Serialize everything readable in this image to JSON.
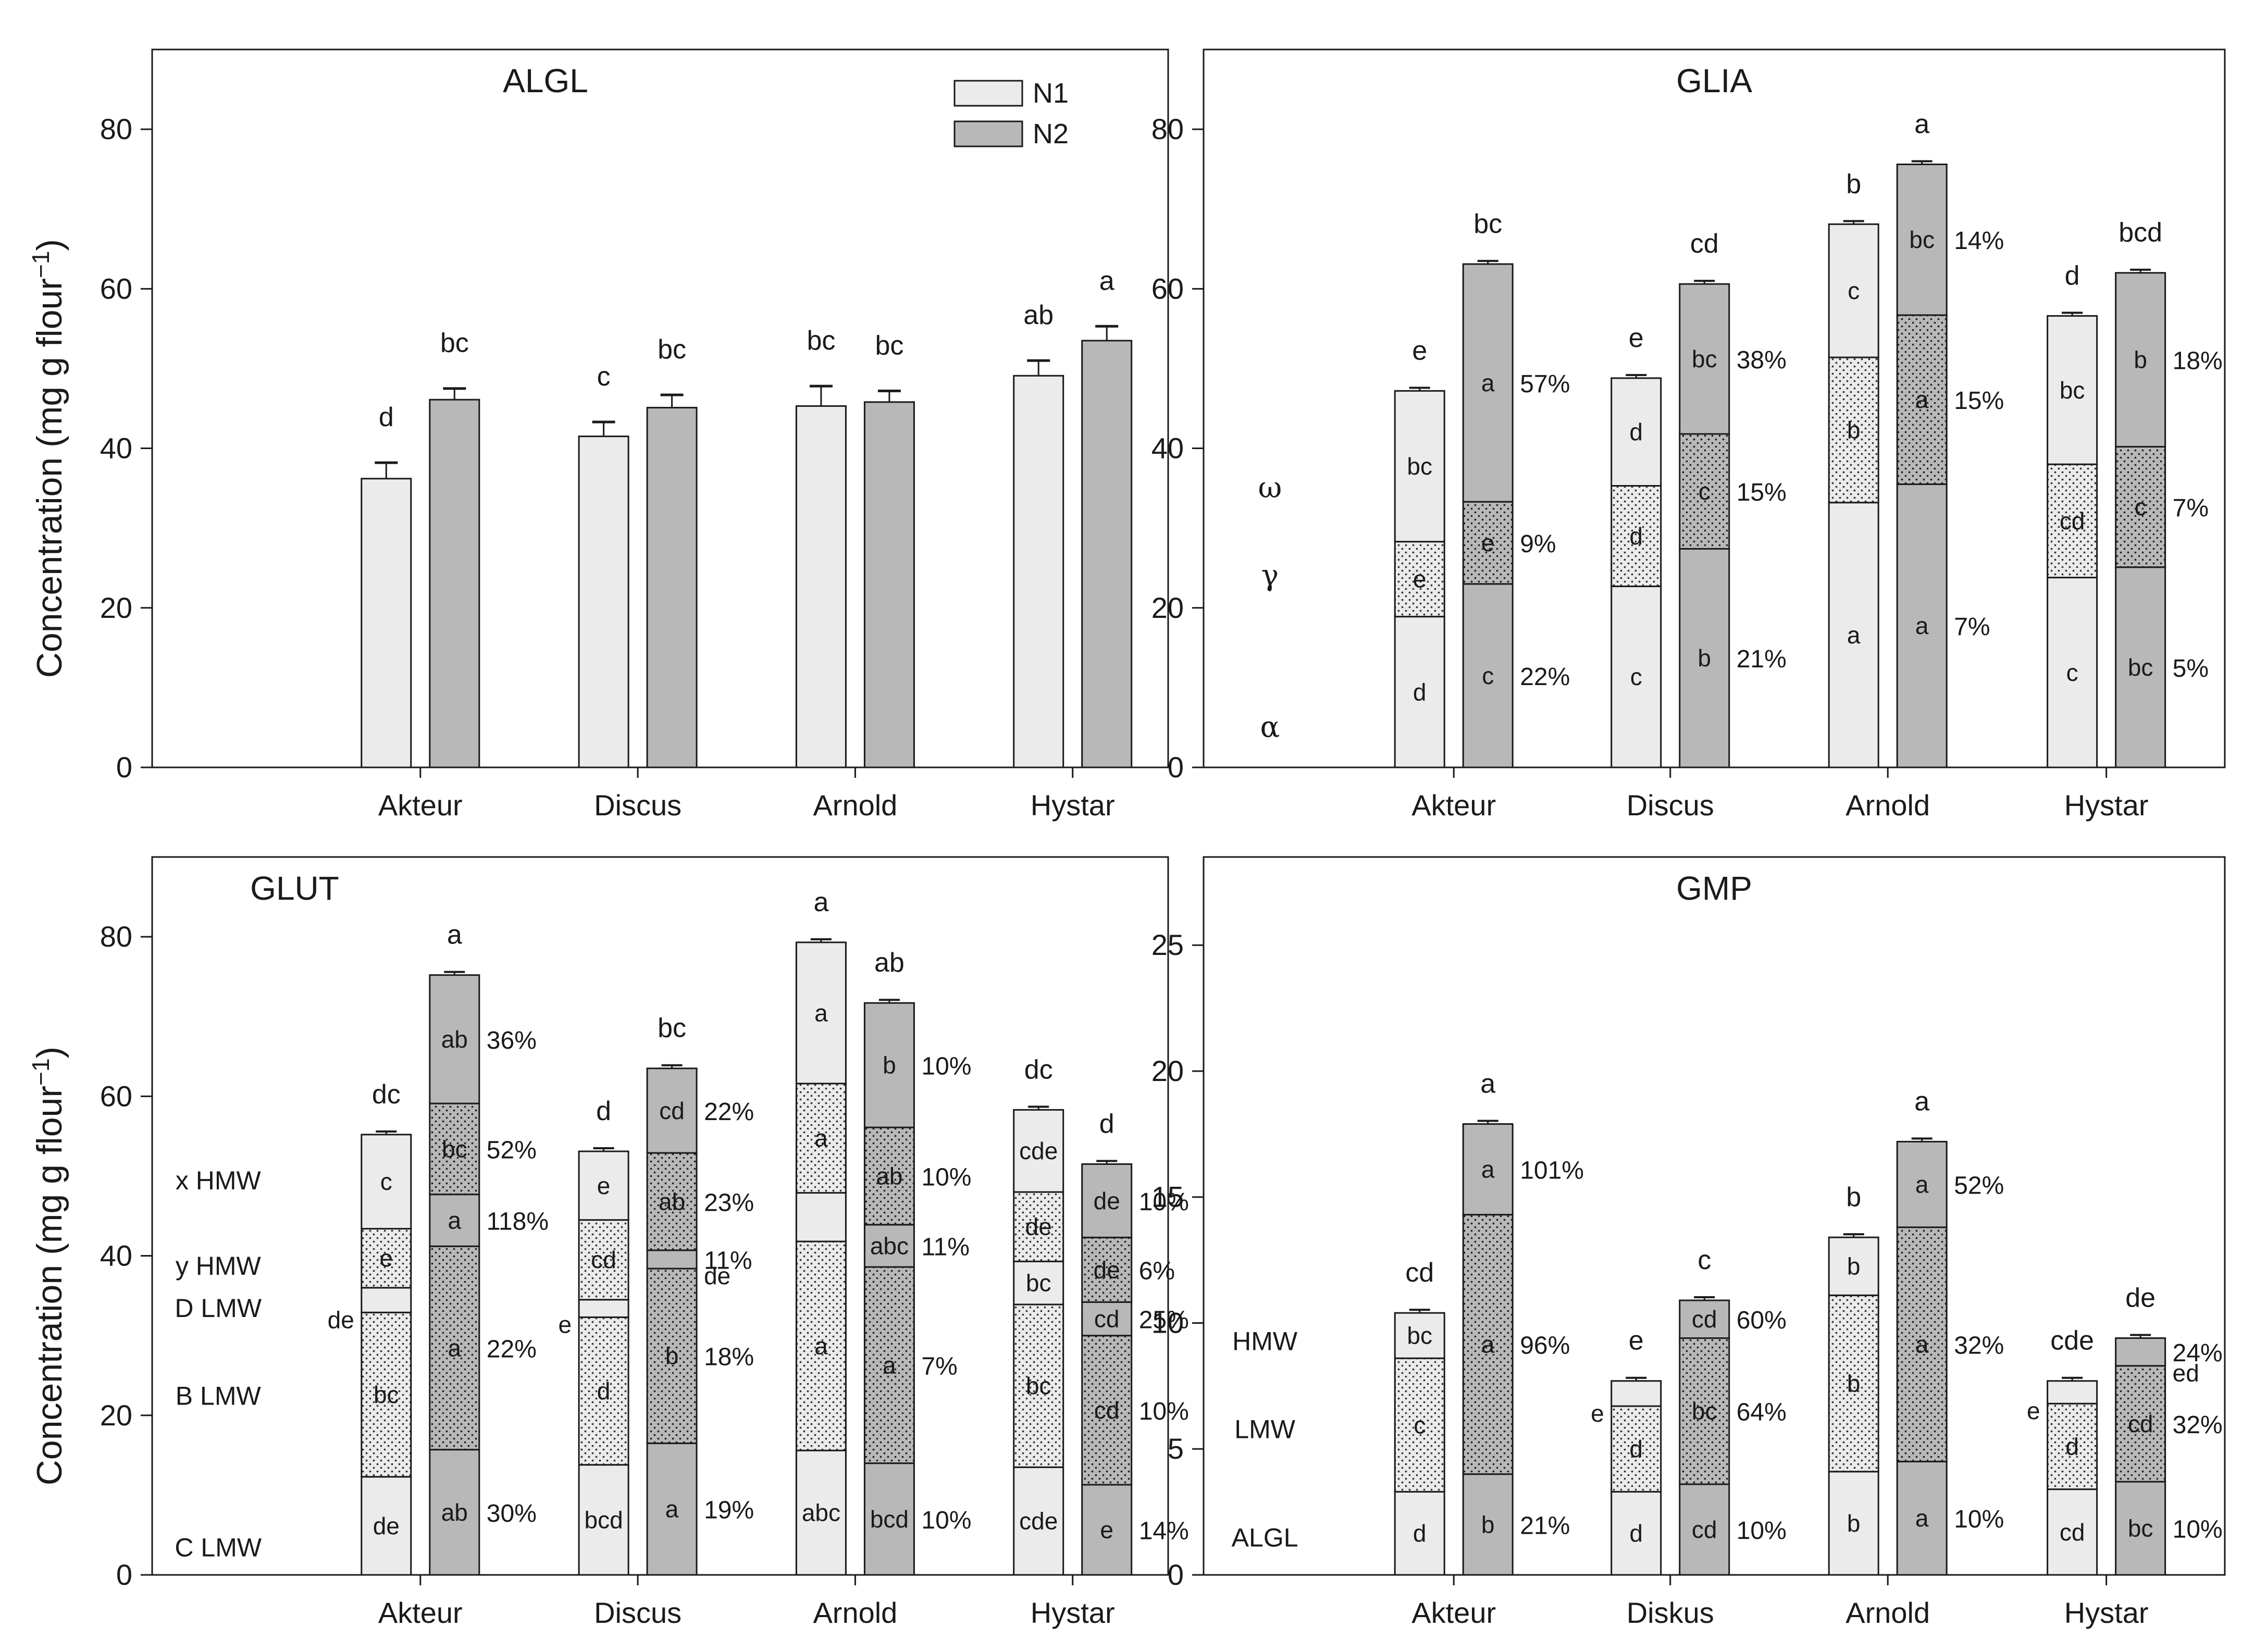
{
  "colors": {
    "n1": "#ebebeb",
    "n2": "#b8b8b8",
    "stroke": "#1a1a1a"
  },
  "y_axis_title": "Concentration (mg g flour",
  "y_axis_title_sup": "−1",
  "y_axis_title_close": ")",
  "chart_data": [
    {
      "id": "algl",
      "type": "bar",
      "title": "ALGL",
      "categories": [
        "Akteur",
        "Discus",
        "Arnold",
        "Hystar"
      ],
      "ylim": [
        0,
        90
      ],
      "yticks": [
        0,
        20,
        40,
        60,
        80
      ],
      "legend": {
        "placement": "top-right",
        "entries": [
          {
            "key": "n1",
            "label": "N1"
          },
          {
            "key": "n2",
            "label": "N2"
          }
        ]
      },
      "series": [
        {
          "name": "N1",
          "key": "n1",
          "values": [
            36.2,
            41.5,
            45.3,
            49.1
          ],
          "errors": [
            2.0,
            1.8,
            2.5,
            1.9
          ],
          "sig": [
            "d",
            "c",
            "bc",
            "ab"
          ]
        },
        {
          "name": "N2",
          "key": "n2",
          "values": [
            46.1,
            45.1,
            45.8,
            53.5
          ],
          "errors": [
            1.4,
            1.6,
            1.4,
            1.8
          ],
          "sig": [
            "bc",
            "bc",
            "bc",
            "a"
          ]
        }
      ]
    },
    {
      "id": "glia",
      "type": "bar",
      "stacked": true,
      "title": "GLIA",
      "categories": [
        "Akteur",
        "Discus",
        "Arnold",
        "Hystar"
      ],
      "ylim": [
        0,
        90
      ],
      "yticks": [
        0,
        20,
        40,
        60,
        80
      ],
      "component_labels_style": "greek",
      "component_labels": [
        "α",
        "γ",
        "ω"
      ],
      "component_label_values": [
        5,
        24,
        35
      ],
      "series": [
        {
          "name": "N1",
          "key": "n1",
          "pattern": [
            null,
            "dots",
            null
          ],
          "totals": [
            47.2,
            48.8,
            68.1,
            56.6
          ],
          "total_sig": [
            "e",
            "e",
            "b",
            "d"
          ],
          "bars": [
            {
              "bounds": [
                0,
                18.9,
                28.3,
                47.2
              ],
              "letters": [
                "d",
                "e",
                "bc"
              ],
              "pcts": [
                "",
                "",
                ""
              ]
            },
            {
              "bounds": [
                0,
                22.7,
                35.3,
                48.8
              ],
              "letters": [
                "c",
                "d",
                "d"
              ],
              "pcts": [
                "",
                "",
                ""
              ]
            },
            {
              "bounds": [
                0,
                33.2,
                51.4,
                68.1
              ],
              "letters": [
                "a",
                "b",
                "c"
              ],
              "pcts": [
                "",
                "",
                ""
              ]
            },
            {
              "bounds": [
                0,
                23.8,
                38.0,
                56.6
              ],
              "letters": [
                "c",
                "cd",
                "bc"
              ],
              "pcts": [
                "",
                "",
                ""
              ]
            }
          ]
        },
        {
          "name": "N2",
          "key": "n2",
          "pattern": [
            null,
            "dots",
            null
          ],
          "totals": [
            63.1,
            60.6,
            75.6,
            62.0
          ],
          "total_sig": [
            "bc",
            "cd",
            "a",
            "bcd"
          ],
          "bars": [
            {
              "bounds": [
                0,
                23.0,
                33.3,
                63.1
              ],
              "letters": [
                "c",
                "e",
                "a"
              ],
              "pcts": [
                "22%",
                "9%",
                "57%"
              ]
            },
            {
              "bounds": [
                0,
                27.4,
                41.8,
                60.6
              ],
              "letters": [
                "b",
                "c",
                "bc"
              ],
              "pcts": [
                "21%",
                "15%",
                "38%"
              ]
            },
            {
              "bounds": [
                0,
                35.5,
                56.7,
                75.6
              ],
              "letters": [
                "a",
                "a",
                "bc"
              ],
              "pcts": [
                "7%",
                "15%",
                "14%"
              ]
            },
            {
              "bounds": [
                0,
                25.1,
                40.2,
                62.0
              ],
              "letters": [
                "bc",
                "c",
                "b"
              ],
              "pcts": [
                "5%",
                "7%",
                "18%"
              ]
            }
          ]
        }
      ]
    },
    {
      "id": "glut",
      "type": "bar",
      "stacked": true,
      "title": "GLUT",
      "categories": [
        "Akteur",
        "Discus",
        "Arnold",
        "Hystar"
      ],
      "ylim": [
        0,
        90
      ],
      "yticks": [
        0,
        20,
        40,
        60,
        80
      ],
      "component_labels_style": "text",
      "component_labels": [
        "C LMW",
        "B LMW",
        "D LMW",
        "y HMW",
        "x HMW"
      ],
      "component_label_values": [
        3.5,
        22.5,
        33.5,
        38.8,
        49.5
      ],
      "series": [
        {
          "name": "N1",
          "key": "n1",
          "pattern": [
            null,
            "dots",
            null,
            "dots",
            null
          ],
          "totals": [
            55.2,
            53.1,
            79.3,
            58.3
          ],
          "total_sig": [
            "dc",
            "d",
            "a",
            "dc"
          ],
          "bars": [
            {
              "bounds": [
                0,
                12.3,
                32.9,
                36.0,
                43.4,
                55.2
              ],
              "letters": [
                "de",
                "bc",
                "",
                "e",
                "c"
              ],
              "pcts": [
                "",
                "",
                "",
                "",
                ""
              ],
              "side_letter": "de"
            },
            {
              "bounds": [
                0,
                13.8,
                32.3,
                34.5,
                44.5,
                53.1
              ],
              "letters": [
                "bcd",
                "d",
                "",
                "cd",
                "e"
              ],
              "pcts": [
                "",
                "",
                "",
                "",
                ""
              ],
              "side_letter": "e"
            },
            {
              "bounds": [
                0,
                15.6,
                41.8,
                47.9,
                61.6,
                79.3
              ],
              "letters": [
                "abc",
                "a",
                "",
                "a",
                "a"
              ],
              "pcts": [
                "",
                "",
                "",
                "",
                ""
              ],
              "side_letter": ""
            },
            {
              "bounds": [
                0,
                13.5,
                33.9,
                39.3,
                48.0,
                58.3
              ],
              "letters": [
                "cde",
                "bc",
                "bc",
                "de",
                "cde"
              ],
              "pcts": [
                "",
                "",
                "",
                "",
                ""
              ],
              "side_letter": ""
            }
          ]
        },
        {
          "name": "N2",
          "key": "n2",
          "pattern": [
            null,
            "dots",
            null,
            "dots",
            null
          ],
          "totals": [
            75.2,
            63.5,
            71.7,
            51.5
          ],
          "total_sig": [
            "a",
            "bc",
            "ab",
            "d"
          ],
          "bars": [
            {
              "bounds": [
                0,
                15.7,
                41.2,
                47.7,
                59.1,
                75.2
              ],
              "letters": [
                "ab",
                "a",
                "a",
                "bc",
                "ab"
              ],
              "pcts": [
                "30%",
                "22%",
                "118%",
                "52%",
                "36%"
              ],
              "side_letter": ""
            },
            {
              "bounds": [
                0,
                16.5,
                38.4,
                40.7,
                52.9,
                63.5
              ],
              "letters": [
                "a",
                "b",
                "",
                "ab",
                "cd"
              ],
              "pcts": [
                "19%",
                "18%",
                "11%",
                "23%",
                "22%"
              ],
              "side_letter": "de"
            },
            {
              "bounds": [
                0,
                14.0,
                38.6,
                43.9,
                56.1,
                71.7
              ],
              "letters": [
                "bcd",
                "a",
                "abc",
                "ab",
                "b"
              ],
              "pcts": [
                "10%",
                "7%",
                "11%",
                "10%",
                "10%"
              ],
              "side_letter": ""
            },
            {
              "bounds": [
                0,
                11.3,
                30.0,
                34.2,
                42.3,
                51.5
              ],
              "letters": [
                "e",
                "cd",
                "cd",
                "de",
                "de"
              ],
              "pcts": [
                "14%",
                "10%",
                "25%",
                "6%",
                "10%"
              ],
              "side_letter": ""
            }
          ]
        }
      ]
    },
    {
      "id": "gmp",
      "type": "bar",
      "stacked": true,
      "title": "GMP",
      "categories": [
        "Akteur",
        "Diskus",
        "Arnold",
        "Hystar"
      ],
      "ylim": [
        0,
        28.5
      ],
      "yticks": [
        0,
        5,
        10,
        15,
        20,
        25
      ],
      "component_labels_style": "text",
      "component_labels": [
        "ALGL",
        "LMW",
        "HMW"
      ],
      "component_label_values": [
        1.5,
        5.8,
        9.3
      ],
      "series": [
        {
          "name": "N1",
          "key": "n1",
          "pattern": [
            null,
            "dots",
            null
          ],
          "totals": [
            10.4,
            7.7,
            13.4,
            7.7
          ],
          "total_sig": [
            "cd",
            "e",
            "b",
            "cde"
          ],
          "bars": [
            {
              "bounds": [
                0,
                3.3,
                8.6,
                10.4
              ],
              "letters": [
                "d",
                "c",
                "bc"
              ],
              "pcts": [
                "",
                "",
                ""
              ],
              "side_letter": ""
            },
            {
              "bounds": [
                0,
                3.3,
                6.7,
                7.7
              ],
              "letters": [
                "d",
                "d",
                ""
              ],
              "pcts": [
                "",
                "",
                ""
              ],
              "side_letter": "e"
            },
            {
              "bounds": [
                0,
                4.1,
                11.1,
                13.4
              ],
              "letters": [
                "b",
                "b",
                "b"
              ],
              "pcts": [
                "",
                "",
                ""
              ],
              "side_letter": ""
            },
            {
              "bounds": [
                0,
                3.4,
                6.8,
                7.7
              ],
              "letters": [
                "cd",
                "d",
                ""
              ],
              "pcts": [
                "",
                "",
                ""
              ],
              "side_letter": "e"
            }
          ]
        },
        {
          "name": "N2",
          "key": "n2",
          "pattern": [
            null,
            "dots",
            null
          ],
          "totals": [
            17.9,
            10.9,
            17.2,
            9.4
          ],
          "total_sig": [
            "a",
            "c",
            "a",
            "de"
          ],
          "bars": [
            {
              "bounds": [
                0,
                4.0,
                14.3,
                17.9
              ],
              "letters": [
                "b",
                "a",
                "a"
              ],
              "pcts": [
                "21%",
                "96%",
                "101%"
              ],
              "side_letter": ""
            },
            {
              "bounds": [
                0,
                3.6,
                9.4,
                10.9
              ],
              "letters": [
                "cd",
                "bc",
                "cd"
              ],
              "pcts": [
                "10%",
                "64%",
                "60%"
              ],
              "side_letter": ""
            },
            {
              "bounds": [
                0,
                4.5,
                13.8,
                17.2
              ],
              "letters": [
                "a",
                "a",
                "a"
              ],
              "pcts": [
                "10%",
                "32%",
                "52%"
              ],
              "side_letter": ""
            },
            {
              "bounds": [
                0,
                3.7,
                8.3,
                9.4
              ],
              "letters": [
                "bc",
                "cd",
                ""
              ],
              "pcts": [
                "10%",
                "32%",
                "24%"
              ],
              "side_letter": "ed"
            }
          ]
        }
      ]
    }
  ]
}
